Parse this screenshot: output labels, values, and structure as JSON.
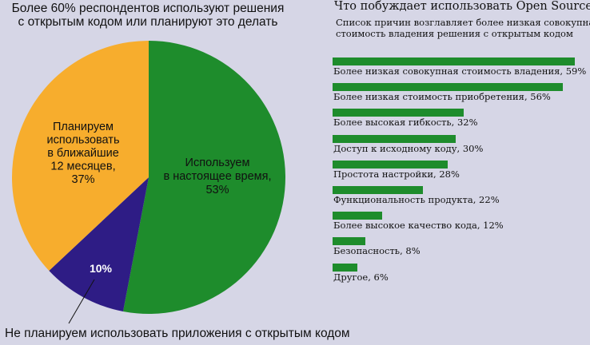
{
  "colors": {
    "background": "#d6d6e6",
    "green": "#1e8c2c",
    "orange": "#f7ad2d",
    "navy": "#2e1c85"
  },
  "pie_title_lines": [
    "Более 60% респондентов используют решения",
    "с открытым кодом или планируют это делать"
  ],
  "pie_callout": "Не планируем использовать приложения с открытым кодом",
  "bar_title": "Что побуждает использовать Open Source?",
  "bar_subtitle_lines": [
    "Список причин возглавляет более низкая совокупная",
    "стоимость владения решения с открытым кодом"
  ],
  "chart_data": [
    {
      "type": "pie",
      "title": "Более 60% респондентов используют решения с открытым кодом или планируют это делать",
      "slices": [
        {
          "label_lines": [
            "Используем",
            "в настоящее время,",
            "53%"
          ],
          "value": 53,
          "color": "#1e8c2c"
        },
        {
          "label_lines": [
            "10%"
          ],
          "value": 10,
          "color": "#2e1c85"
        },
        {
          "label_lines": [
            "Планируем",
            "использовать",
            "в ближайшие",
            "12 месяцев,",
            "37%"
          ],
          "value": 37,
          "color": "#f7ad2d"
        }
      ]
    },
    {
      "type": "bar",
      "title": "Что побуждает использовать Open Source?",
      "subtitle": "Список причин возглавляет более низкая совокупная стоимость владения решения с открытым кодом",
      "xlim": [
        0,
        59
      ],
      "categories": [
        "Более низкая совокупная стоимость владения, 59%",
        "Более низкая стоимость приобретения, 56%",
        "Более высокая гибкость, 32%",
        "Доступ к исходному коду, 30%",
        "Простота настройки, 28%",
        "Функциональность продукта, 22%",
        "Более высокое качество кода, 12%",
        "Безопасность, 8%",
        "Другое, 6%"
      ],
      "values": [
        59,
        56,
        32,
        30,
        28,
        22,
        12,
        8,
        6
      ]
    }
  ]
}
